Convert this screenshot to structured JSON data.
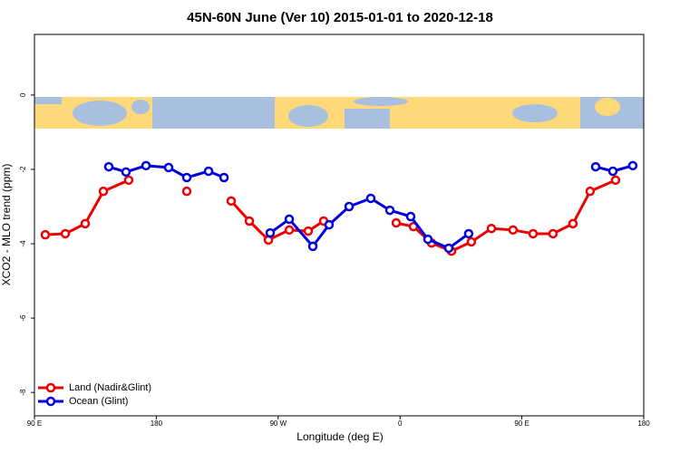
{
  "chart_data": {
    "type": "line",
    "title": "45N-60N June (Ver 10)   2015-01-01 to 2020-12-18",
    "x_label": "Longitude (deg E)",
    "y_label": "XCO2 - MLO trend (ppm)",
    "xlim": [
      90,
      540
    ],
    "ylim": [
      -8.63,
      1.63
    ],
    "xticks": [
      {
        "value": 90,
        "label": "90 E"
      },
      {
        "value": 180,
        "label": "180"
      },
      {
        "value": 270,
        "label": "90 W"
      },
      {
        "value": 360,
        "label": "0"
      },
      {
        "value": 450,
        "label": "90 E"
      },
      {
        "value": 540,
        "label": "180"
      }
    ],
    "yticks": [
      0,
      -2,
      -4,
      -6,
      -8
    ],
    "legend": "lower left",
    "series": [
      {
        "name": "Land (Nadir&Glint)",
        "color": "#ee0000",
        "x": [
          98.0,
          112.8,
          127.5,
          140.9,
          159.6,
          null,
          202.5,
          null,
          235.3,
          248.7,
          262.8,
          278.2,
          292.2,
          303.6,
          null,
          357.2,
          369.9,
          383.3,
          398.0,
          412.7,
          427.5,
          443.5,
          458.3,
          473.0,
          487.7,
          500.4,
          519.2
        ],
        "values": [
          -3.76,
          -3.73,
          -3.46,
          -2.59,
          -2.29,
          null,
          -2.59,
          null,
          -2.85,
          -3.39,
          -3.9,
          -3.63,
          -3.66,
          -3.39,
          null,
          -3.44,
          -3.54,
          -3.98,
          -4.2,
          -3.95,
          -3.59,
          -3.63,
          -3.73,
          -3.73,
          -3.46,
          -2.59,
          -2.29
        ]
      },
      {
        "name": "Ocean (Glint)",
        "color": "#0000dd",
        "x": [
          144.9,
          157.6,
          172.4,
          189.1,
          202.5,
          218.6,
          230.0,
          null,
          264.1,
          278.2,
          295.6,
          307.6,
          322.4,
          338.4,
          352.5,
          367.9,
          380.6,
          396.0,
          410.7,
          null,
          504.5,
          517.2,
          531.9
        ],
        "values": [
          -1.93,
          -2.07,
          -1.9,
          -1.95,
          -2.22,
          -2.05,
          -2.22,
          null,
          -3.71,
          -3.34,
          -4.07,
          -3.49,
          -3.0,
          -2.78,
          -3.1,
          -3.27,
          -3.88,
          -4.12,
          -3.73,
          null,
          -1.93,
          -2.05,
          -1.9
        ]
      }
    ]
  }
}
